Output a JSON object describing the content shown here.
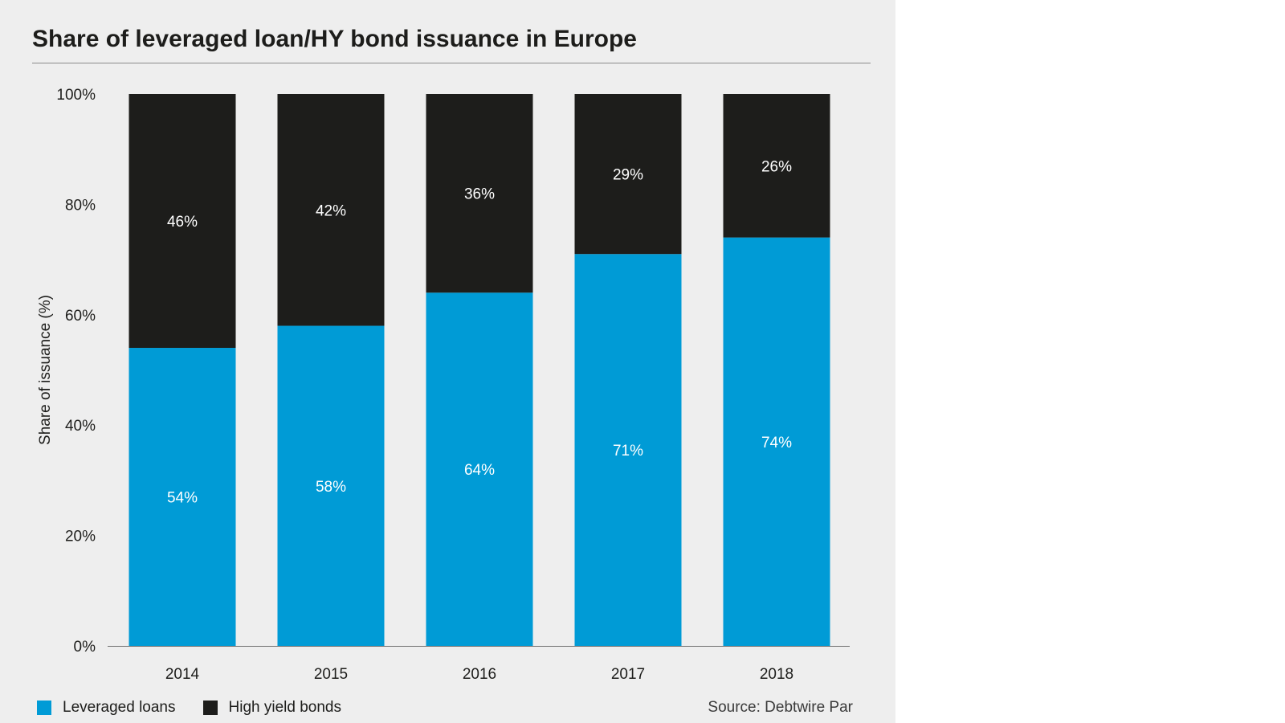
{
  "chart_data": {
    "type": "bar",
    "stacked": true,
    "title": "Share of leveraged loan/HY bond issuance in Europe",
    "ylabel": "Share of issuance (%)",
    "xlabel": "",
    "ylim": [
      0,
      100
    ],
    "yticks": [
      "0%",
      "20%",
      "40%",
      "60%",
      "80%",
      "100%"
    ],
    "ytick_values": [
      0,
      20,
      40,
      60,
      80,
      100
    ],
    "categories": [
      "2014",
      "2015",
      "2016",
      "2017",
      "2018"
    ],
    "series": [
      {
        "name": "Leveraged loans",
        "color": "#009bd6",
        "values": [
          54,
          58,
          64,
          71,
          74
        ],
        "labels": [
          "54%",
          "58%",
          "64%",
          "71%",
          "74%"
        ]
      },
      {
        "name": "High yield bonds",
        "color": "#1d1d1b",
        "values": [
          46,
          42,
          36,
          29,
          26
        ],
        "labels": [
          "46%",
          "42%",
          "36%",
          "29%",
          "26%"
        ]
      }
    ],
    "legend": "bottom-left",
    "grid": false,
    "source": "Source: Debtwire Par"
  }
}
